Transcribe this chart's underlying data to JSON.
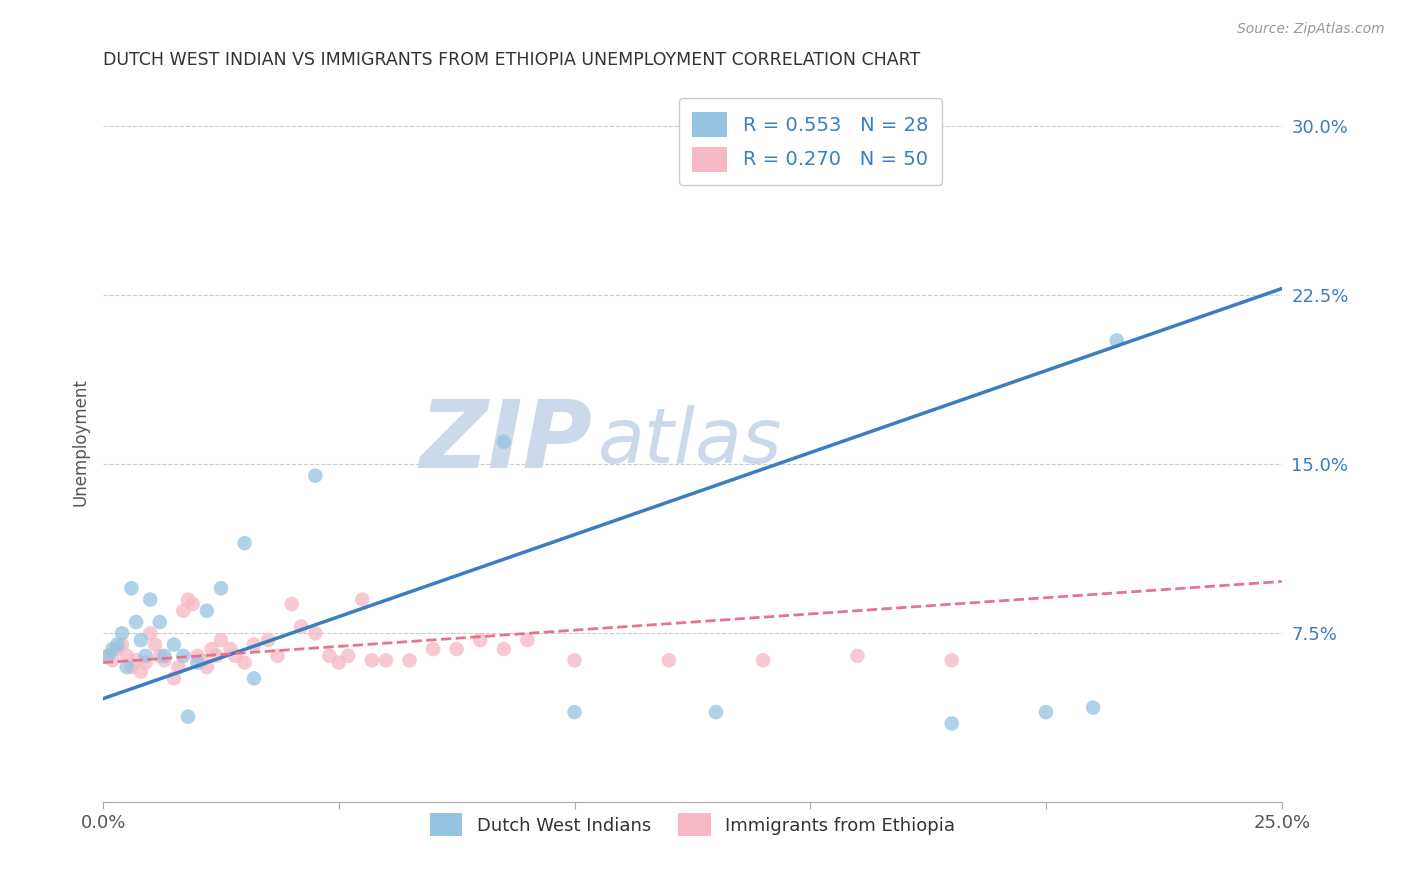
{
  "title": "DUTCH WEST INDIAN VS IMMIGRANTS FROM ETHIOPIA UNEMPLOYMENT CORRELATION CHART",
  "source": "Source: ZipAtlas.com",
  "ylabel": "Unemployment",
  "xlim": [
    0.0,
    0.25
  ],
  "ylim": [
    0.0,
    0.32
  ],
  "xticks": [
    0.0,
    0.05,
    0.1,
    0.15,
    0.2,
    0.25
  ],
  "xticklabels": [
    "0.0%",
    "",
    "",
    "",
    "",
    "25.0%"
  ],
  "right_yticks": [
    0.075,
    0.15,
    0.225,
    0.3
  ],
  "right_yticklabels": [
    "7.5%",
    "15.0%",
    "22.5%",
    "30.0%"
  ],
  "legend_r1": "R = 0.553",
  "legend_n1": "N = 28",
  "legend_r2": "R = 0.270",
  "legend_n2": "N = 50",
  "color_blue": "#94c4e2",
  "color_pink": "#f5b8c4",
  "color_line_blue": "#3a7ebf",
  "color_line_pink": "#e8738a",
  "label1": "Dutch West Indians",
  "label2": "Immigrants from Ethiopia",
  "blue_x": [
    0.001,
    0.002,
    0.003,
    0.004,
    0.005,
    0.006,
    0.007,
    0.008,
    0.009,
    0.01,
    0.012,
    0.013,
    0.015,
    0.017,
    0.018,
    0.02,
    0.022,
    0.025,
    0.03,
    0.032,
    0.045,
    0.085,
    0.1,
    0.13,
    0.18,
    0.2,
    0.21,
    0.215
  ],
  "blue_y": [
    0.065,
    0.068,
    0.07,
    0.075,
    0.06,
    0.095,
    0.08,
    0.072,
    0.065,
    0.09,
    0.08,
    0.065,
    0.07,
    0.065,
    0.038,
    0.062,
    0.085,
    0.095,
    0.115,
    0.055,
    0.145,
    0.16,
    0.04,
    0.04,
    0.035,
    0.04,
    0.042,
    0.205
  ],
  "pink_x": [
    0.001,
    0.002,
    0.003,
    0.004,
    0.005,
    0.006,
    0.007,
    0.008,
    0.009,
    0.01,
    0.011,
    0.012,
    0.013,
    0.015,
    0.016,
    0.017,
    0.018,
    0.019,
    0.02,
    0.021,
    0.022,
    0.023,
    0.024,
    0.025,
    0.027,
    0.028,
    0.03,
    0.032,
    0.035,
    0.037,
    0.04,
    0.042,
    0.045,
    0.048,
    0.05,
    0.052,
    0.055,
    0.057,
    0.06,
    0.065,
    0.07,
    0.075,
    0.08,
    0.085,
    0.09,
    0.1,
    0.12,
    0.14,
    0.16,
    0.18
  ],
  "pink_y": [
    0.065,
    0.063,
    0.068,
    0.07,
    0.065,
    0.06,
    0.063,
    0.058,
    0.062,
    0.075,
    0.07,
    0.065,
    0.063,
    0.055,
    0.06,
    0.085,
    0.09,
    0.088,
    0.065,
    0.063,
    0.06,
    0.068,
    0.065,
    0.072,
    0.068,
    0.065,
    0.062,
    0.07,
    0.072,
    0.065,
    0.088,
    0.078,
    0.075,
    0.065,
    0.062,
    0.065,
    0.09,
    0.063,
    0.063,
    0.063,
    0.068,
    0.068,
    0.072,
    0.068,
    0.072,
    0.063,
    0.063,
    0.063,
    0.065,
    0.063
  ],
  "blue_line_x0": 0.0,
  "blue_line_y0": 0.046,
  "blue_line_x1": 0.25,
  "blue_line_y1": 0.228,
  "pink_line_x0": 0.0,
  "pink_line_y0": 0.062,
  "pink_line_x1": 0.25,
  "pink_line_y1": 0.098,
  "background_color": "#ffffff",
  "grid_color": "#cccccc",
  "title_color": "#333333",
  "watermark_zip": "ZIP",
  "watermark_atlas": "atlas",
  "watermark_color": "#ccd9ea"
}
